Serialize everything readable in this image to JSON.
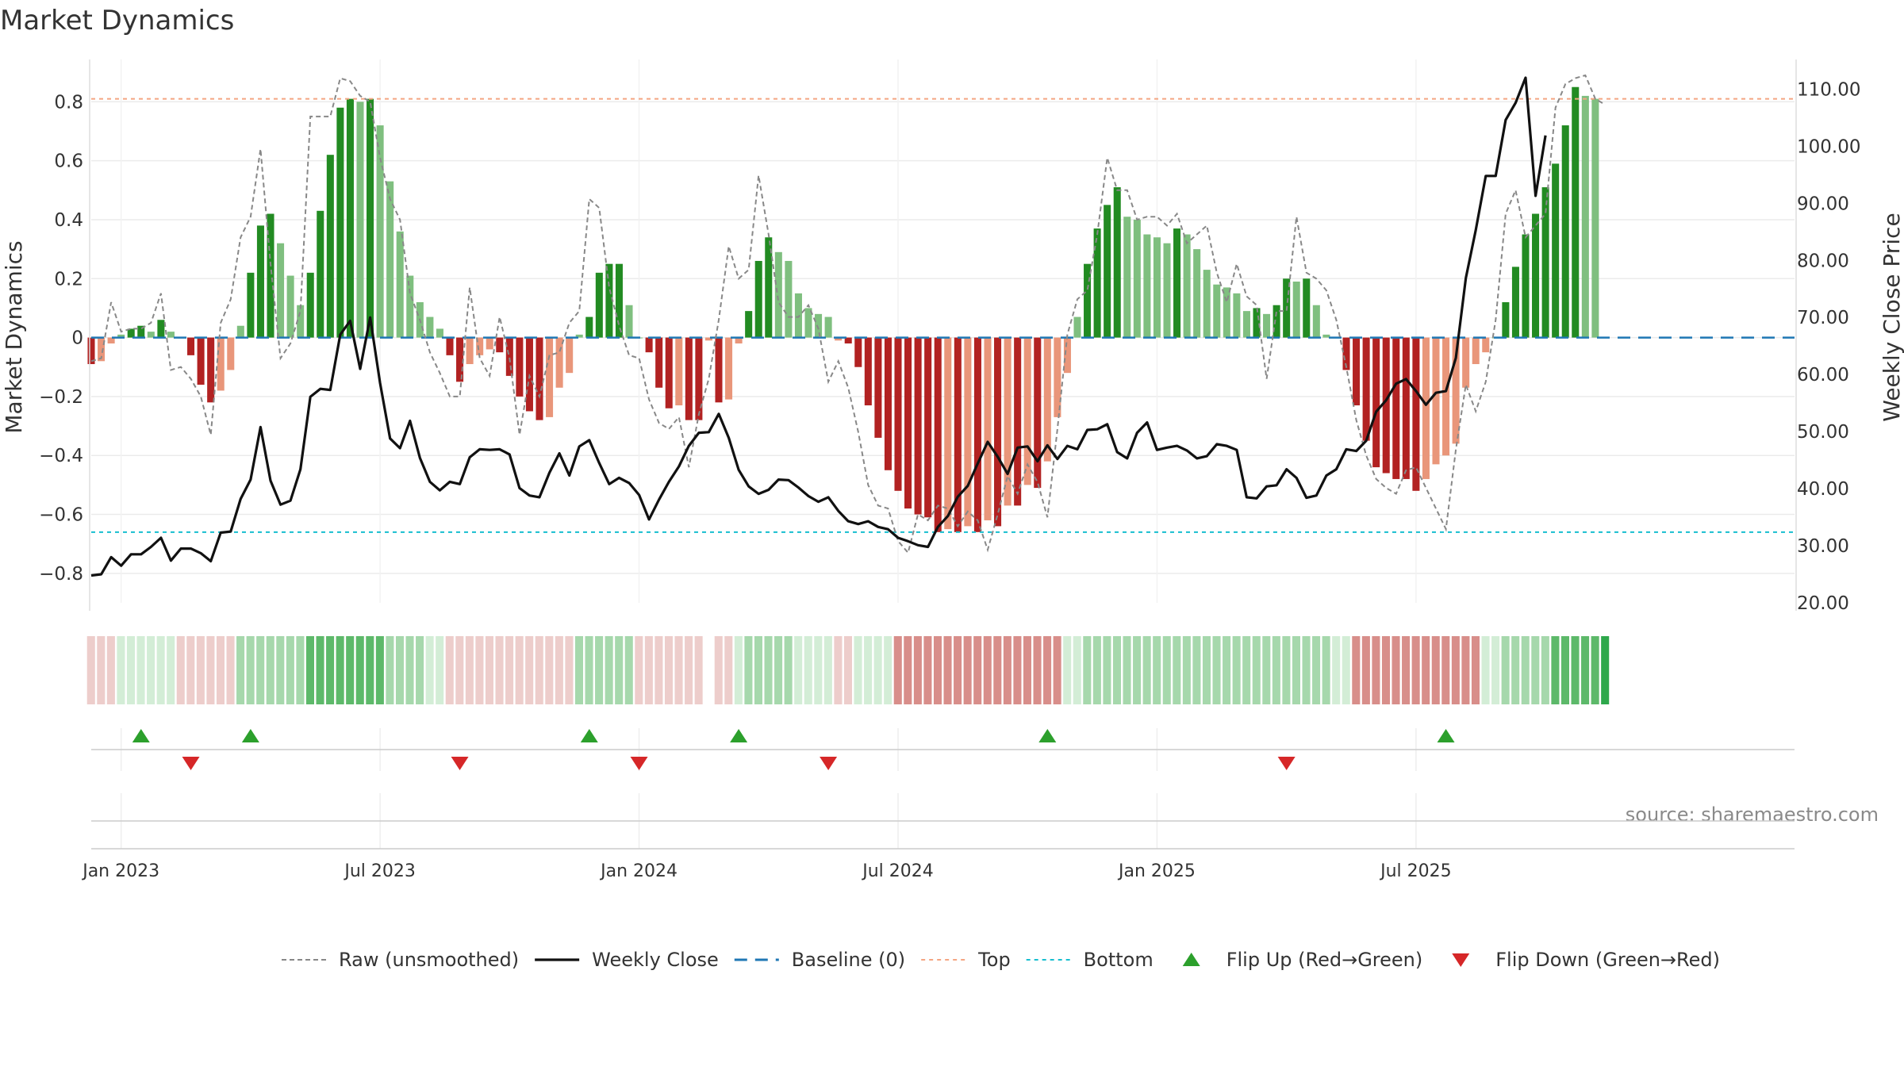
{
  "title": "Market Dynamics",
  "source_text": "source: sharemaestro.com",
  "colors": {
    "strong_green": "#228B22",
    "light_green": "#7FBF7F",
    "strong_red": "#B22222",
    "light_red": "#E9967A",
    "raw_line": "#888888",
    "close_line": "#111111",
    "baseline": "#1F77B4",
    "top": "#F4A582",
    "bottom": "#17BECF",
    "flip_up": "#2CA02C",
    "flip_down": "#D62728",
    "grid": "#EBEBEB"
  },
  "chart_data": {
    "type": "bar",
    "title": "Market Dynamics",
    "ylabel_left": "Market Dynamics",
    "ylabel_right": "Weekly Close Price",
    "ylim_left": [
      -0.9,
      0.93
    ],
    "ylim_right": [
      20,
      114.5
    ],
    "yticks_left": [
      "0.8",
      "0.6",
      "0.4",
      "0.2",
      "0",
      "−0.2",
      "−0.4",
      "−0.6",
      "−0.8"
    ],
    "yticks_left_values": [
      0.8,
      0.6,
      0.4,
      0.2,
      0,
      -0.2,
      -0.4,
      -0.6,
      -0.8
    ],
    "yticks_right": [
      "110.00",
      "100.00",
      "90.00",
      "80.00",
      "70.00",
      "60.00",
      "50.00",
      "40.00",
      "30.00",
      "20.00"
    ],
    "yticks_right_values": [
      110,
      100,
      90,
      80,
      70,
      60,
      50,
      40,
      30,
      20
    ],
    "x_start_week": -3,
    "x_weeks_span": 171,
    "xticks": [
      "Jan 2023",
      "Jul 2023",
      "Jan 2024",
      "Jul 2024",
      "Jan 2025",
      "Jul 2025"
    ],
    "xticks_weeks": [
      0,
      26,
      52,
      78,
      104,
      130
    ],
    "top_level": 0.81,
    "bottom_level": -0.66,
    "baseline_level": 0,
    "bars": [
      -0.09,
      -0.08,
      -0.02,
      0.01,
      0.03,
      0.04,
      0.02,
      0.06,
      0.02,
      0,
      -0.06,
      -0.16,
      -0.22,
      -0.18,
      -0.11,
      0.04,
      0.22,
      0.38,
      0.42,
      0.32,
      0.21,
      0.11,
      0.22,
      0.43,
      0.62,
      0.78,
      0.81,
      0.8,
      0.81,
      0.72,
      0.53,
      0.36,
      0.21,
      0.12,
      0.07,
      0.03,
      -0.06,
      -0.15,
      -0.09,
      -0.06,
      -0.04,
      -0.05,
      -0.13,
      -0.2,
      -0.25,
      -0.28,
      -0.27,
      -0.17,
      -0.12,
      0.01,
      0.07,
      0.22,
      0.25,
      0.25,
      0.11,
      0,
      -0.05,
      -0.17,
      -0.24,
      -0.23,
      -0.28,
      -0.28,
      -0.01,
      -0.22,
      -0.21,
      -0.02,
      0.09,
      0.26,
      0.34,
      0.29,
      0.26,
      0.15,
      0.1,
      0.08,
      0.07,
      -0.01,
      -0.02,
      -0.1,
      -0.23,
      -0.34,
      -0.45,
      -0.52,
      -0.58,
      -0.6,
      -0.61,
      -0.66,
      -0.65,
      -0.66,
      -0.64,
      -0.66,
      -0.62,
      -0.64,
      -0.57,
      -0.57,
      -0.5,
      -0.51,
      -0.42,
      -0.27,
      -0.12,
      0.07,
      0.25,
      0.37,
      0.45,
      0.51,
      0.41,
      0.4,
      0.35,
      0.34,
      0.32,
      0.37,
      0.35,
      0.3,
      0.23,
      0.18,
      0.17,
      0.15,
      0.09,
      0.1,
      0.08,
      0.11,
      0.2,
      0.19,
      0.2,
      0.11,
      0.01,
      0,
      -0.11,
      -0.23,
      -0.35,
      -0.44,
      -0.46,
      -0.48,
      -0.48,
      -0.52,
      -0.48,
      -0.43,
      -0.4,
      -0.36,
      -0.17,
      -0.09,
      -0.05,
      0,
      0.12,
      0.24,
      0.35,
      0.42,
      0.51,
      0.59,
      0.72,
      0.85,
      0.82,
      0.81
    ],
    "raw_series": [
      -0.08,
      -0.07,
      0.12,
      0.02,
      0.03,
      0.03,
      0.05,
      0.15,
      -0.11,
      -0.1,
      -0.14,
      -0.2,
      -0.33,
      0.05,
      0.13,
      0.34,
      0.41,
      0.64,
      0.25,
      -0.07,
      -0.02,
      0.09,
      0.75,
      0.75,
      0.75,
      0.88,
      0.87,
      0.82,
      0.8,
      0.61,
      0.47,
      0.4,
      0.15,
      0.06,
      -0.05,
      -0.12,
      -0.2,
      -0.2,
      0.17,
      -0.07,
      -0.13,
      0.07,
      -0.07,
      -0.33,
      -0.13,
      -0.2,
      -0.06,
      -0.05,
      0.05,
      0.09,
      0.47,
      0.44,
      0.17,
      0.04,
      -0.06,
      -0.07,
      -0.21,
      -0.29,
      -0.31,
      -0.27,
      -0.44,
      -0.26,
      -0.14,
      0.06,
      0.31,
      0.2,
      0.23,
      0.55,
      0.35,
      0.12,
      0.07,
      0.07,
      0.11,
      0.03,
      -0.15,
      -0.08,
      -0.17,
      -0.32,
      -0.5,
      -0.57,
      -0.58,
      -0.69,
      -0.73,
      -0.6,
      -0.62,
      -0.57,
      -0.58,
      -0.64,
      -0.59,
      -0.62,
      -0.72,
      -0.6,
      -0.47,
      -0.53,
      -0.43,
      -0.49,
      -0.61,
      -0.31,
      0.01,
      0.13,
      0.16,
      0.35,
      0.61,
      0.5,
      0.5,
      0.4,
      0.41,
      0.41,
      0.38,
      0.42,
      0.32,
      0.35,
      0.38,
      0.22,
      0.12,
      0.25,
      0.14,
      0.11,
      -0.14,
      0.09,
      0.09,
      0.41,
      0.22,
      0.2,
      0.16,
      0.06,
      -0.1,
      -0.28,
      -0.4,
      -0.48,
      -0.51,
      -0.53,
      -0.45,
      -0.44,
      -0.51,
      -0.58,
      -0.65,
      -0.38,
      -0.16,
      -0.25,
      -0.15,
      0.06,
      0.42,
      0.5,
      0.34,
      0.38,
      0.42,
      0.78,
      0.86,
      0.88,
      0.89,
      0.81,
      0.79
    ],
    "close_series": [
      24.8,
      25,
      28,
      26.5,
      28.5,
      28.5,
      29.8,
      31.4,
      27.4,
      29.5,
      29.5,
      28.7,
      27.3,
      32.3,
      32.5,
      38.2,
      41.6,
      50.8,
      41.4,
      37.2,
      37.9,
      43.4,
      56.1,
      57.5,
      57.3,
      67,
      69.4,
      61,
      70,
      58.5,
      48.8,
      47.1,
      51.9,
      45.4,
      41.2,
      39.7,
      41.2,
      40.8,
      45.5,
      46.9,
      46.8,
      46.9,
      46,
      40.1,
      38.8,
      38.5,
      42.8,
      46.2,
      42.3,
      47.4,
      48.5,
      44.5,
      40.8,
      41.9,
      41,
      38.9,
      34.6,
      38.1,
      41.2,
      43.9,
      47.5,
      49.8,
      49.9,
      53.1,
      48.9,
      43.3,
      40.4,
      39.1,
      39.8,
      41.6,
      41.5,
      40.2,
      38.7,
      37.7,
      38.5,
      36.1,
      34.3,
      33.8,
      34.3,
      33.3,
      32.9,
      31.4,
      30.8,
      30.1,
      29.8,
      33.3,
      35.2,
      38.6,
      40.5,
      44.4,
      48.2,
      45.6,
      42.6,
      47.2,
      47.4,
      44.8,
      47.6,
      45.2,
      47.5,
      46.9,
      50.3,
      50.4,
      51.3,
      46.4,
      45.3,
      49.8,
      51.6,
      46.8,
      47.2,
      47.5,
      46.7,
      45.3,
      45.7,
      47.8,
      47.5,
      46.8,
      38.5,
      38.3,
      40.4,
      40.6,
      43.4,
      41.9,
      38.4,
      38.8,
      42.3,
      43.4,
      46.9,
      46.6,
      48.4,
      53.5,
      55.5,
      58.4,
      59.2,
      57.1,
      54.7,
      56.8,
      57.1,
      62.9,
      76.9,
      85.3,
      94.8,
      94.8,
      104.6,
      107.6,
      112,
      91.3,
      101.9
    ],
    "close_start_index": 0,
    "flip_up_weeks": [
      2,
      13,
      47,
      62,
      93,
      133
    ],
    "flip_down_weeks": [
      7,
      34,
      52,
      71,
      117
    ],
    "regime_strip": [
      1,
      1,
      1,
      2,
      2,
      2,
      2,
      2,
      2,
      1,
      1,
      1,
      1,
      1,
      1,
      3,
      3,
      3,
      3,
      3,
      3,
      3,
      4,
      4,
      4,
      4,
      4,
      4,
      4,
      4,
      3,
      3,
      3,
      3,
      2,
      2,
      1,
      1,
      1,
      1,
      1,
      1,
      1,
      1,
      1,
      1,
      1,
      1,
      1,
      3,
      3,
      3,
      3,
      3,
      3,
      1,
      1,
      1,
      1,
      1,
      1,
      1,
      0,
      1,
      1,
      2,
      3,
      3,
      3,
      3,
      3,
      2,
      2,
      2,
      2,
      1,
      1,
      2,
      2,
      2,
      2,
      5,
      5,
      5,
      5,
      5,
      5,
      5,
      5,
      5,
      5,
      5,
      5,
      5,
      5,
      5,
      5,
      5,
      2,
      2,
      3,
      3,
      3,
      3,
      3,
      3,
      3,
      3,
      3,
      3,
      3,
      3,
      3,
      3,
      3,
      3,
      3,
      3,
      3,
      3,
      3,
      3,
      3,
      3,
      3,
      2,
      2,
      5,
      5,
      5,
      5,
      5,
      5,
      5,
      5,
      5,
      5,
      5,
      5,
      5,
      2,
      2,
      3,
      3,
      3,
      3,
      3,
      4,
      4,
      4,
      4,
      4,
      6
    ],
    "legend": [
      {
        "label": "Raw (unsmoothed)",
        "kind": "raw"
      },
      {
        "label": "Weekly Close",
        "kind": "close"
      },
      {
        "label": "Baseline (0)",
        "kind": "baseline"
      },
      {
        "label": "Top",
        "kind": "top"
      },
      {
        "label": "Bottom",
        "kind": "bottom"
      },
      {
        "label": "Flip Up (Red→Green)",
        "kind": "flip_up"
      },
      {
        "label": "Flip Down (Green→Red)",
        "kind": "flip_down"
      }
    ]
  }
}
